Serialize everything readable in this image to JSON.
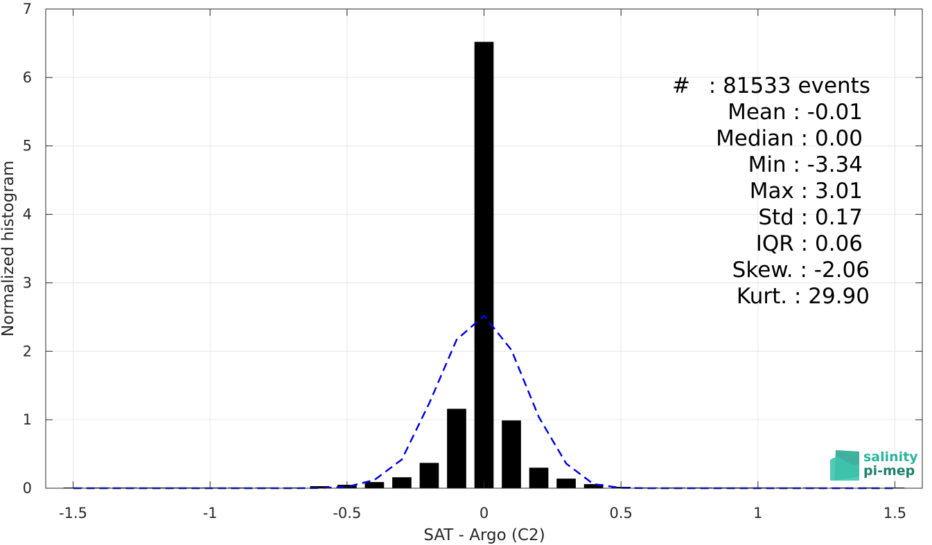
{
  "chart_data": {
    "type": "bar",
    "title": "",
    "xlabel": "SAT - Argo (C2)",
    "ylabel": "Normalized histogram",
    "xlim": [
      -1.6,
      1.6
    ],
    "ylim": [
      0,
      7
    ],
    "grid": true,
    "xticks": [
      -1.5,
      -1,
      -0.5,
      0,
      0.5,
      1,
      1.5
    ],
    "xtick_labels": [
      "-1.5",
      "-1",
      "-0.5",
      "0",
      "0.5",
      "1",
      "1.5"
    ],
    "yticks": [
      0,
      1,
      2,
      3,
      4,
      5,
      6,
      7
    ],
    "ytick_labels": [
      "0",
      "1",
      "2",
      "3",
      "4",
      "5",
      "6",
      "7"
    ],
    "bar_width": 0.07,
    "bars": {
      "x": [
        -1.5,
        -1.4,
        -1.3,
        -1.2,
        -1.1,
        -1.0,
        -0.9,
        -0.8,
        -0.7,
        -0.6,
        -0.5,
        -0.4,
        -0.3,
        -0.2,
        -0.1,
        0.0,
        0.1,
        0.2,
        0.3,
        0.4,
        0.5,
        0.6,
        0.7,
        0.8,
        0.9,
        1.0,
        1.1,
        1.2,
        1.3,
        1.4,
        1.5
      ],
      "values": [
        0.01,
        0.005,
        0.005,
        0.005,
        0.005,
        0.005,
        0.005,
        0.01,
        0.01,
        0.03,
        0.05,
        0.09,
        0.16,
        0.37,
        1.16,
        6.52,
        0.99,
        0.3,
        0.14,
        0.06,
        0.02,
        0.01,
        0.005,
        0.003,
        0.003,
        0.003,
        0.002,
        0.002,
        0.002,
        0.002,
        0.005
      ],
      "color": "#000000"
    },
    "fit_curve": {
      "style": "dashed",
      "color": "#0000e6",
      "x": [
        -1.5,
        -1.4,
        -1.3,
        -1.2,
        -1.1,
        -1.0,
        -0.9,
        -0.8,
        -0.7,
        -0.6,
        -0.5,
        -0.4,
        -0.3,
        -0.2,
        -0.1,
        0.0,
        0.1,
        0.2,
        0.3,
        0.4,
        0.5,
        0.6,
        0.7,
        0.8,
        0.9,
        1.0,
        1.1,
        1.2,
        1.3,
        1.4,
        1.5
      ],
      "y": [
        0,
        0,
        0,
        0,
        0,
        0,
        0,
        0,
        0,
        0.002,
        0.02,
        0.12,
        0.42,
        1.24,
        2.17,
        2.52,
        2.02,
        1.04,
        0.36,
        0.06,
        0.005,
        0,
        0,
        0,
        0,
        0,
        0,
        0,
        0,
        0,
        0
      ]
    }
  },
  "stats": [
    {
      "label": "#  :",
      "value": "81533 events"
    },
    {
      "label": "Mean :",
      "value": "-0.01"
    },
    {
      "label": "Median :",
      "value": "0.00"
    },
    {
      "label": "Min :",
      "value": "-3.34"
    },
    {
      "label": "Max :",
      "value": "3.01"
    },
    {
      "label": "Std :",
      "value": "0.17"
    },
    {
      "label": "IQR :",
      "value": "0.06"
    },
    {
      "label": "Skew. :",
      "value": "-2.06"
    },
    {
      "label": "Kurt. :",
      "value": "29.90"
    }
  ],
  "logo": {
    "line1": "salinity",
    "line2": "pi-mep",
    "color1": "#2bb3a0",
    "color2": "#1f7f70"
  }
}
